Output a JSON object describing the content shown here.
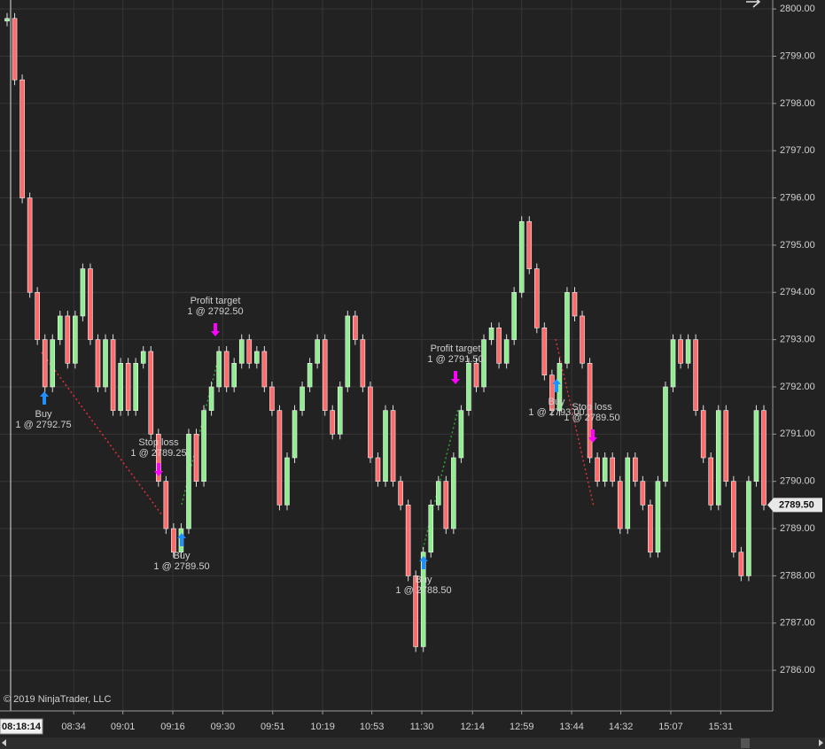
{
  "chart_data": {
    "type": "price-bars",
    "values": [
      2799.8,
      2798.5,
      2796,
      2794,
      2793,
      2792,
      2793,
      2793.5,
      2792.5,
      2793.5,
      2794.5,
      2793,
      2792,
      2793,
      2791.5,
      2792.5,
      2791.5,
      2792.5,
      2792.75,
      2791,
      2790,
      2789,
      2788.5,
      2789,
      2791,
      2790,
      2791.5,
      2792,
      2792.75,
      2792,
      2792.5,
      2793,
      2792.5,
      2792.75,
      2792,
      2791.5,
      2789.5,
      2790.5,
      2791.5,
      2792,
      2792.5,
      2793,
      2791.5,
      2791,
      2792,
      2793.5,
      2793,
      2792,
      2790.5,
      2790,
      2791.5,
      2790,
      2789.5,
      2788,
      2786.5,
      2788.5,
      2789.5,
      2790,
      2789,
      2790.5,
      2791.5,
      2792.5,
      2792,
      2793,
      2793.25,
      2792.5,
      2793,
      2794,
      2795.5,
      2794.5,
      2793.25,
      2792.25,
      2791.5,
      2792.5,
      2794,
      2793.5,
      2792.5,
      2790.5,
      2790,
      2790.5,
      2790,
      2789,
      2790.5,
      2790,
      2789.5,
      2788.5,
      2790,
      2792,
      2793,
      2792.5,
      2793,
      2791.5,
      2790.5,
      2789.5,
      2791.5,
      2790,
      2788.5,
      2788,
      2790,
      2791.5,
      2789.5
    ],
    "up_color": "#90ee90",
    "down_color": "#ff6b6b",
    "xlim": [
      0,
      100
    ],
    "xticks": [
      {
        "value": 8.8,
        "label": "08:34"
      },
      {
        "value": 15.3,
        "label": "09:01"
      },
      {
        "value": 21.9,
        "label": "09:16"
      },
      {
        "value": 28.5,
        "label": "09:30"
      },
      {
        "value": 35.1,
        "label": "09:51"
      },
      {
        "value": 41.7,
        "label": "10:19"
      },
      {
        "value": 48.2,
        "label": "10:53"
      },
      {
        "value": 54.8,
        "label": "11:30"
      },
      {
        "value": 61.5,
        "label": "12:14"
      },
      {
        "value": 68.0,
        "label": "12:59"
      },
      {
        "value": 74.6,
        "label": "13:44"
      },
      {
        "value": 81.1,
        "label": "14:32"
      },
      {
        "value": 87.7,
        "label": "15:07"
      },
      {
        "value": 94.3,
        "label": "15:31"
      }
    ],
    "ylim": [
      2785.14,
      2800.19
    ],
    "yticks": [
      {
        "value": 2786,
        "label": "2786.00"
      },
      {
        "value": 2787,
        "label": "2787.00"
      },
      {
        "value": 2788,
        "label": "2788.00"
      },
      {
        "value": 2789,
        "label": "2789.00"
      },
      {
        "value": 2790,
        "label": "2790.00"
      },
      {
        "value": 2791,
        "label": "2791.00"
      },
      {
        "value": 2792,
        "label": "2792.00"
      },
      {
        "value": 2793,
        "label": "2793.00"
      },
      {
        "value": 2794,
        "label": "2794.00"
      },
      {
        "value": 2795,
        "label": "2795.00"
      },
      {
        "value": 2796,
        "label": "2796.00"
      },
      {
        "value": 2797,
        "label": "2797.00"
      },
      {
        "value": 2798,
        "label": "2798.00"
      },
      {
        "value": 2799,
        "label": "2799.00"
      },
      {
        "value": 2800,
        "label": "2800.00"
      }
    ],
    "grid": true,
    "current_price": {
      "value": 2789.5,
      "label": "2789.50"
    },
    "time_box": "08:18:14",
    "copyright": "© 2019 NinjaTrader, LLC",
    "annotations": [
      {
        "label": "Buy",
        "detail": "1 @ 2792.75"
      },
      {
        "label": "Stop loss",
        "detail": "1 @ 2789.25"
      },
      {
        "label": "Buy",
        "detail": "1 @ 2789.50"
      },
      {
        "label": "Profit target",
        "detail": "1 @ 2792.50"
      },
      {
        "label": "Buy",
        "detail": "1 @ 2788.50"
      },
      {
        "label": "Profit target",
        "detail": "1 @ 2791.50"
      },
      {
        "label": "Buy",
        "detail": "1 @ 2793.00"
      },
      {
        "label": "Stop loss",
        "detail": "1 @ 2789.50"
      }
    ]
  }
}
